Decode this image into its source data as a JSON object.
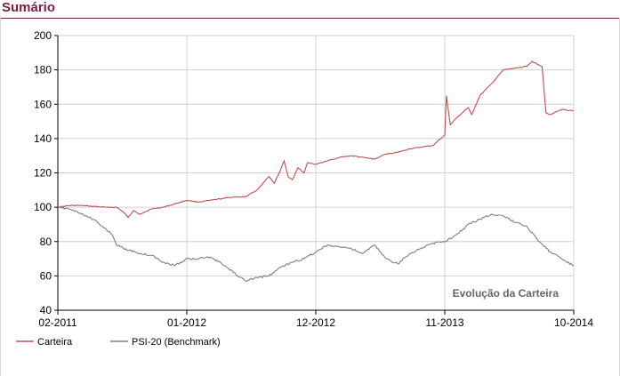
{
  "header": {
    "title": "Sumário"
  },
  "chart_data": {
    "type": "line",
    "title": "",
    "annotation": "Evolução da Carteira",
    "xlabel": "",
    "ylabel": "",
    "ylim": [
      40,
      200
    ],
    "yticks": [
      40,
      60,
      80,
      100,
      120,
      140,
      160,
      180,
      200
    ],
    "xlim": [
      "2011-02",
      "2014-10"
    ],
    "xticks": [
      "02-2011",
      "01-2012",
      "12-2012",
      "11-2013",
      "10-2014"
    ],
    "grid": true,
    "legend_position": "bottom-left",
    "series": [
      {
        "name": "Carteira",
        "color": "#c0504d",
        "points": [
          [
            "2011-02",
            100
          ],
          [
            "2011-03",
            101
          ],
          [
            "2011-04",
            101
          ],
          [
            "2011-05",
            100.5
          ],
          [
            "2011-06",
            100
          ],
          [
            "2011-07",
            100
          ],
          [
            "2011-07-20",
            97
          ],
          [
            "2011-08",
            94
          ],
          [
            "2011-08-15",
            98
          ],
          [
            "2011-09",
            96
          ],
          [
            "2011-10",
            99
          ],
          [
            "2011-11",
            100
          ],
          [
            "2011-12",
            102
          ],
          [
            "2012-01",
            104
          ],
          [
            "2012-02",
            103
          ],
          [
            "2012-03",
            104
          ],
          [
            "2012-04",
            105
          ],
          [
            "2012-05",
            106
          ],
          [
            "2012-06",
            106
          ],
          [
            "2012-07",
            110
          ],
          [
            "2012-08",
            118
          ],
          [
            "2012-08-15",
            114
          ],
          [
            "2012-09",
            122
          ],
          [
            "2012-09-10",
            127
          ],
          [
            "2012-09-20",
            118
          ],
          [
            "2012-10",
            116
          ],
          [
            "2012-10-15",
            123
          ],
          [
            "2012-11",
            120
          ],
          [
            "2012-11-10",
            126
          ],
          [
            "2012-12",
            125
          ],
          [
            "2013-01",
            127
          ],
          [
            "2013-02",
            129
          ],
          [
            "2013-03",
            130
          ],
          [
            "2013-04",
            129
          ],
          [
            "2013-05",
            128
          ],
          [
            "2013-06",
            131
          ],
          [
            "2013-07",
            132
          ],
          [
            "2013-08",
            134
          ],
          [
            "2013-09",
            135
          ],
          [
            "2013-10",
            136
          ],
          [
            "2013-10-20",
            140
          ],
          [
            "2013-11",
            142
          ],
          [
            "2013-11-05",
            165
          ],
          [
            "2013-11-15",
            148
          ],
          [
            "2013-12",
            152
          ],
          [
            "2014-01",
            158
          ],
          [
            "2014-01-10",
            154
          ],
          [
            "2014-02",
            165
          ],
          [
            "2014-03",
            172
          ],
          [
            "2014-04",
            180
          ],
          [
            "2014-05",
            181
          ],
          [
            "2014-06",
            182
          ],
          [
            "2014-06-15",
            185
          ],
          [
            "2014-07",
            183
          ],
          [
            "2014-07-10",
            182
          ],
          [
            "2014-07-20",
            155
          ],
          [
            "2014-08",
            154
          ],
          [
            "2014-09",
            157
          ],
          [
            "2014-10",
            156
          ]
        ]
      },
      {
        "name": "PSI-20 (Benchmark)",
        "color": "#7c7c96",
        "points": [
          [
            "2011-02",
            100
          ],
          [
            "2011-03",
            99
          ],
          [
            "2011-04",
            96
          ],
          [
            "2011-05",
            93
          ],
          [
            "2011-06",
            88
          ],
          [
            "2011-06-20",
            84
          ],
          [
            "2011-07",
            78
          ],
          [
            "2011-08",
            75
          ],
          [
            "2011-09",
            73
          ],
          [
            "2011-10",
            72
          ],
          [
            "2011-11",
            68
          ],
          [
            "2011-12",
            66
          ],
          [
            "2012-01",
            70
          ],
          [
            "2012-02",
            70
          ],
          [
            "2012-03",
            71
          ],
          [
            "2012-04",
            67
          ],
          [
            "2012-05",
            62
          ],
          [
            "2012-06",
            57
          ],
          [
            "2012-07",
            59
          ],
          [
            "2012-08",
            60
          ],
          [
            "2012-09",
            65
          ],
          [
            "2012-10",
            68
          ],
          [
            "2012-11",
            70
          ],
          [
            "2012-12",
            74
          ],
          [
            "2013-01",
            78
          ],
          [
            "2013-02",
            77
          ],
          [
            "2013-03",
            76
          ],
          [
            "2013-04",
            73
          ],
          [
            "2013-05",
            78
          ],
          [
            "2013-06",
            70
          ],
          [
            "2013-07",
            67
          ],
          [
            "2013-08",
            73
          ],
          [
            "2013-09",
            76
          ],
          [
            "2013-10",
            79
          ],
          [
            "2013-11",
            80
          ],
          [
            "2013-12",
            84
          ],
          [
            "2014-01",
            90
          ],
          [
            "2014-02",
            93
          ],
          [
            "2014-03",
            96
          ],
          [
            "2014-04",
            95
          ],
          [
            "2014-05",
            91
          ],
          [
            "2014-06",
            89
          ],
          [
            "2014-07",
            80
          ],
          [
            "2014-08",
            74
          ],
          [
            "2014-09",
            70
          ],
          [
            "2014-10",
            66
          ]
        ]
      }
    ]
  }
}
